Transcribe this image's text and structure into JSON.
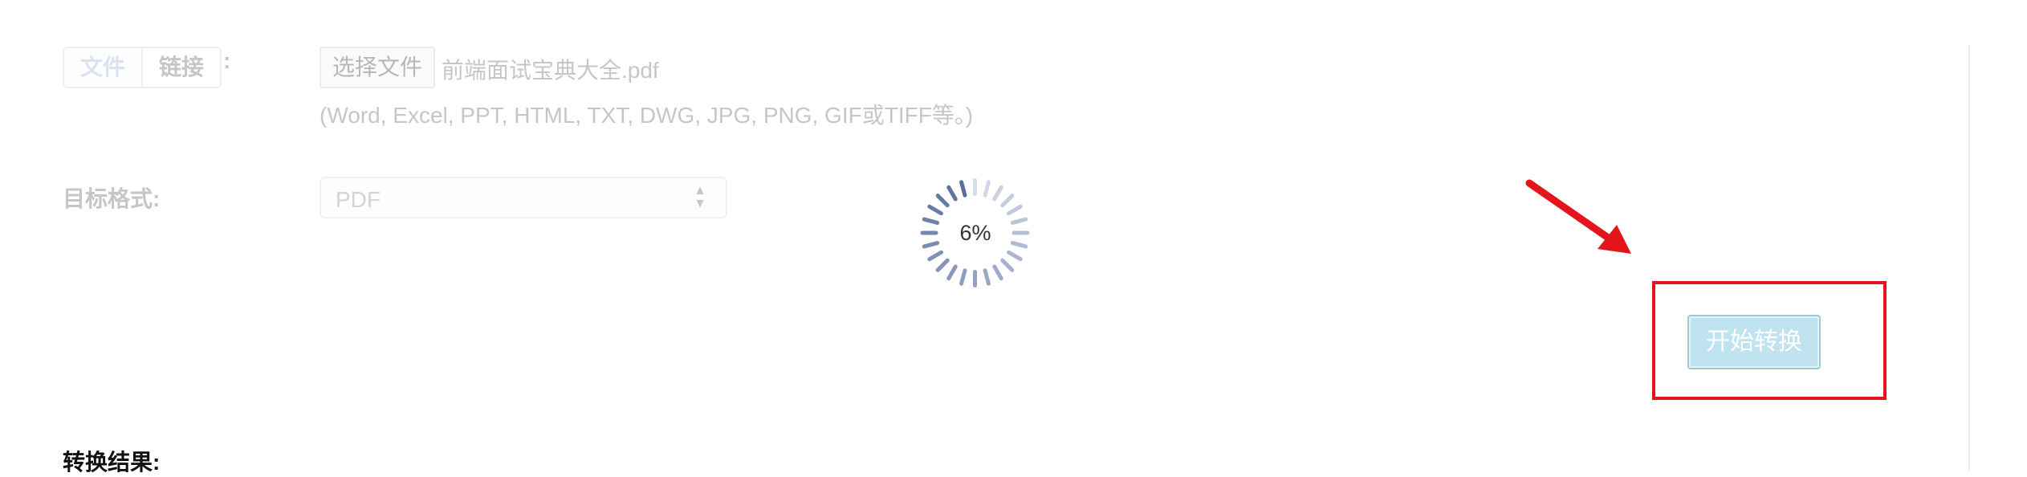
{
  "source": {
    "tabs": [
      {
        "label": "文件",
        "active": true
      },
      {
        "label": "链接",
        "active": false
      }
    ],
    "colon": ":"
  },
  "file": {
    "button_label": "选择文件",
    "file_name": "前端面试宝典大全.pdf",
    "hint": "(Word, Excel, PPT, HTML, TXT, DWG, JPG, PNG, GIF或TIFF等。)"
  },
  "target": {
    "label": "目标格式:",
    "selected": "PDF"
  },
  "progress": {
    "text": "6%",
    "value": 0.06,
    "spinner_color": "#5a6f9d"
  },
  "convert": {
    "button_label": "开始转换"
  },
  "result": {
    "label": "转换结果:"
  },
  "colors": {
    "annotation_red": "#e3141c",
    "button_fill": "#bfe3f1"
  }
}
